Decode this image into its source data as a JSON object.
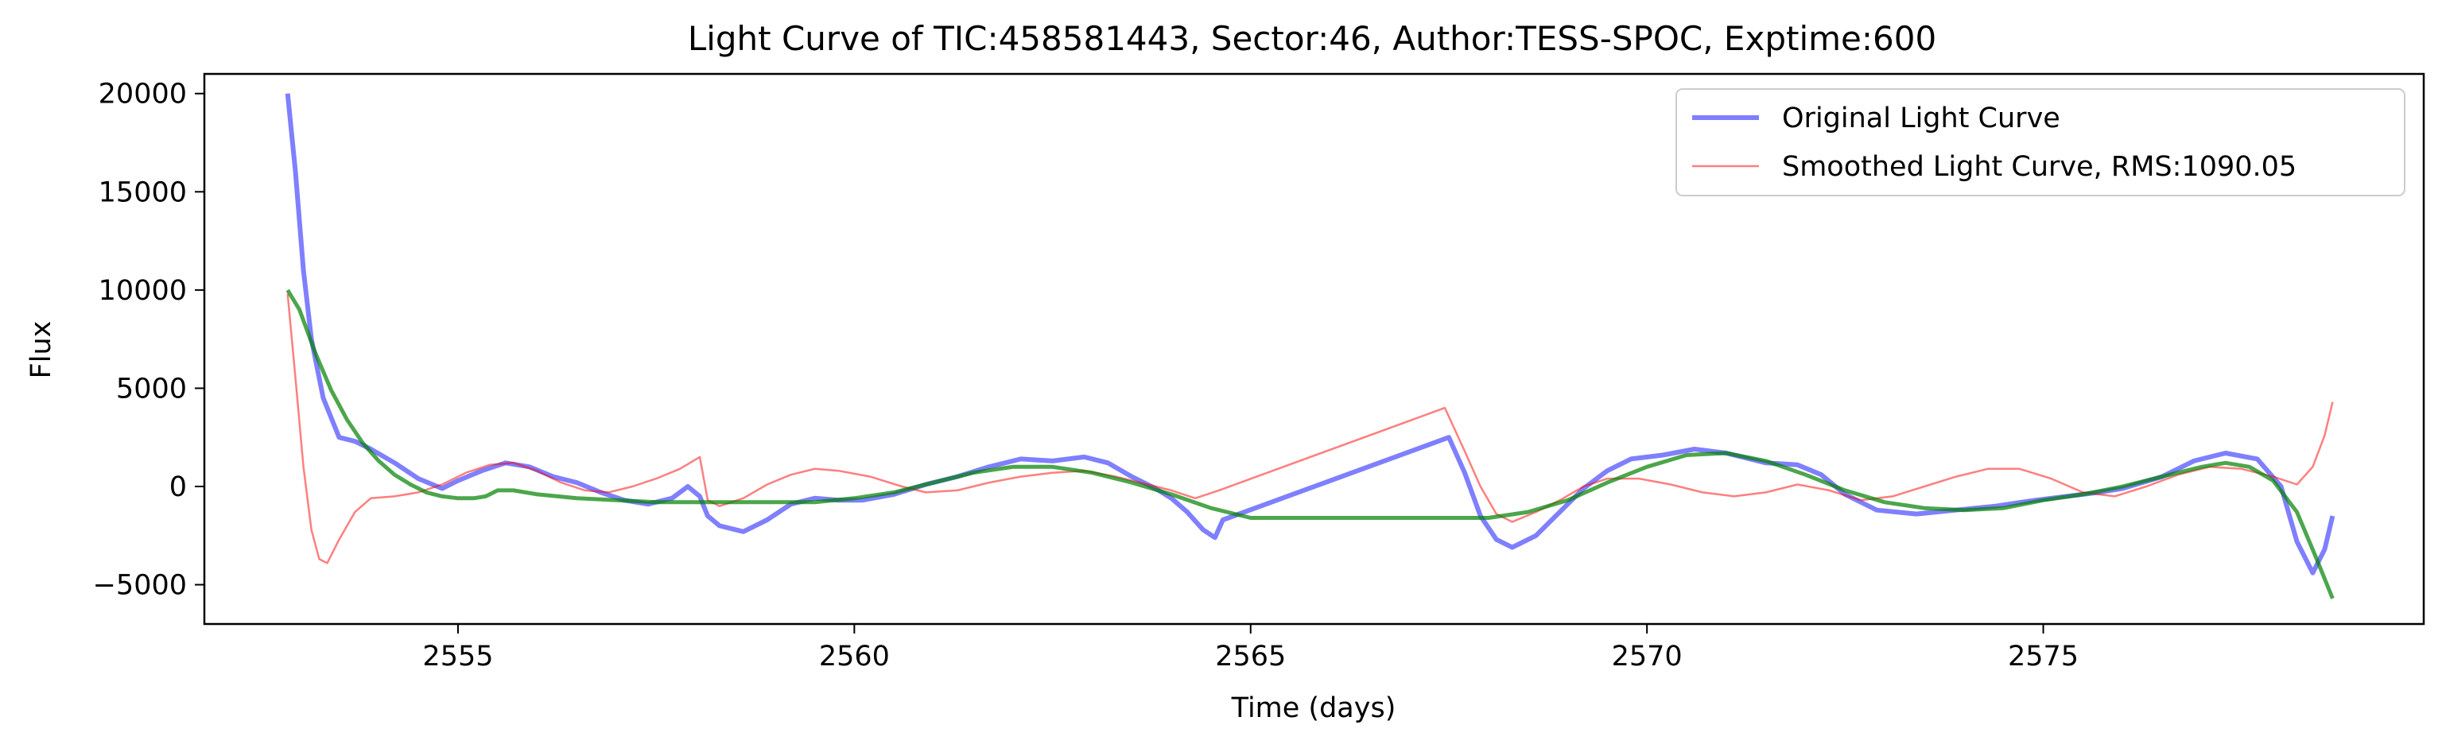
{
  "chart_data": {
    "type": "line",
    "title": "Light Curve of TIC:458581443, Sector:46, Author:TESS-SPOC, Exptime:600",
    "xlabel": "Time (days)",
    "ylabel": "Flux",
    "xlim": [
      2551.8,
      2579.8
    ],
    "ylim": [
      -7000,
      21000
    ],
    "xticks": [
      2555,
      2560,
      2565,
      2570,
      2575
    ],
    "yticks": [
      -5000,
      0,
      5000,
      10000,
      15000,
      20000
    ],
    "xtick_labels": [
      "2555",
      "2560",
      "2565",
      "2570",
      "2575"
    ],
    "ytick_labels": [
      "−5000",
      "0",
      "5000",
      "10000",
      "15000",
      "20000"
    ],
    "grid": false,
    "legend_position": "upper right",
    "series": [
      {
        "name": "Original Light Curve",
        "color": "#0000ff",
        "opacity": 0.5,
        "style": "thick",
        "points": [
          [
            2552.85,
            20000
          ],
          [
            2552.95,
            16000
          ],
          [
            2553.05,
            11000
          ],
          [
            2553.15,
            7500
          ],
          [
            2553.3,
            4500
          ],
          [
            2553.5,
            2500
          ],
          [
            2553.7,
            2300
          ],
          [
            2553.9,
            1900
          ],
          [
            2554.2,
            1200
          ],
          [
            2554.5,
            400
          ],
          [
            2554.8,
            -100
          ],
          [
            2555.0,
            300
          ],
          [
            2555.3,
            800
          ],
          [
            2555.6,
            1200
          ],
          [
            2555.9,
            1000
          ],
          [
            2556.2,
            500
          ],
          [
            2556.5,
            200
          ],
          [
            2556.8,
            -300
          ],
          [
            2557.1,
            -700
          ],
          [
            2557.4,
            -900
          ],
          [
            2557.7,
            -600
          ],
          [
            2557.9,
            0
          ],
          [
            2558.05,
            -500
          ],
          [
            2558.15,
            -1500
          ],
          [
            2558.3,
            -2000
          ],
          [
            2558.6,
            -2300
          ],
          [
            2558.9,
            -1700
          ],
          [
            2559.2,
            -900
          ],
          [
            2559.5,
            -600
          ],
          [
            2559.8,
            -700
          ],
          [
            2560.1,
            -700
          ],
          [
            2560.5,
            -400
          ],
          [
            2560.9,
            100
          ],
          [
            2561.3,
            500
          ],
          [
            2561.7,
            1000
          ],
          [
            2562.1,
            1400
          ],
          [
            2562.5,
            1300
          ],
          [
            2562.9,
            1500
          ],
          [
            2563.2,
            1200
          ],
          [
            2563.5,
            500
          ],
          [
            2563.8,
            -100
          ],
          [
            2564.0,
            -600
          ],
          [
            2564.2,
            -1300
          ],
          [
            2564.4,
            -2200
          ],
          [
            2564.55,
            -2600
          ],
          [
            2564.65,
            -1700
          ],
          [
            2567.5,
            2500
          ],
          [
            2567.7,
            700
          ],
          [
            2567.9,
            -1500
          ],
          [
            2568.1,
            -2700
          ],
          [
            2568.3,
            -3100
          ],
          [
            2568.6,
            -2500
          ],
          [
            2568.9,
            -1300
          ],
          [
            2569.2,
            -100
          ],
          [
            2569.5,
            800
          ],
          [
            2569.8,
            1400
          ],
          [
            2570.2,
            1600
          ],
          [
            2570.6,
            1900
          ],
          [
            2571.0,
            1700
          ],
          [
            2571.5,
            1200
          ],
          [
            2571.9,
            1100
          ],
          [
            2572.2,
            600
          ],
          [
            2572.5,
            -400
          ],
          [
            2572.9,
            -1200
          ],
          [
            2573.4,
            -1400
          ],
          [
            2573.9,
            -1200
          ],
          [
            2574.4,
            -1000
          ],
          [
            2574.9,
            -700
          ],
          [
            2575.3,
            -500
          ],
          [
            2575.7,
            -300
          ],
          [
            2576.0,
            -100
          ],
          [
            2576.5,
            500
          ],
          [
            2576.9,
            1300
          ],
          [
            2577.3,
            1700
          ],
          [
            2577.7,
            1400
          ],
          [
            2578.0,
            0
          ],
          [
            2578.2,
            -2800
          ],
          [
            2578.4,
            -4400
          ],
          [
            2578.55,
            -3200
          ],
          [
            2578.65,
            -1500
          ]
        ]
      },
      {
        "name": "Smoothed Light Curve, RMS:1090.05",
        "color": "#ff0000",
        "opacity": 0.5,
        "style": "thin",
        "points": [
          [
            2552.85,
            9800
          ],
          [
            2552.95,
            5500
          ],
          [
            2553.05,
            1000
          ],
          [
            2553.15,
            -2200
          ],
          [
            2553.25,
            -3700
          ],
          [
            2553.35,
            -3900
          ],
          [
            2553.5,
            -2700
          ],
          [
            2553.7,
            -1300
          ],
          [
            2553.9,
            -600
          ],
          [
            2554.2,
            -500
          ],
          [
            2554.5,
            -300
          ],
          [
            2554.8,
            100
          ],
          [
            2555.1,
            700
          ],
          [
            2555.4,
            1100
          ],
          [
            2555.7,
            1200
          ],
          [
            2556.0,
            800
          ],
          [
            2556.3,
            200
          ],
          [
            2556.6,
            -200
          ],
          [
            2556.9,
            -300
          ],
          [
            2557.2,
            0
          ],
          [
            2557.5,
            400
          ],
          [
            2557.8,
            900
          ],
          [
            2558.05,
            1500
          ],
          [
            2558.15,
            -700
          ],
          [
            2558.3,
            -1000
          ],
          [
            2558.6,
            -600
          ],
          [
            2558.9,
            100
          ],
          [
            2559.2,
            600
          ],
          [
            2559.5,
            900
          ],
          [
            2559.8,
            800
          ],
          [
            2560.2,
            500
          ],
          [
            2560.6,
            0
          ],
          [
            2560.9,
            -300
          ],
          [
            2561.3,
            -200
          ],
          [
            2561.7,
            200
          ],
          [
            2562.1,
            500
          ],
          [
            2562.5,
            700
          ],
          [
            2562.9,
            800
          ],
          [
            2563.3,
            500
          ],
          [
            2563.7,
            100
          ],
          [
            2564.0,
            -200
          ],
          [
            2564.3,
            -600
          ],
          [
            2564.6,
            -200
          ],
          [
            2567.45,
            4000
          ],
          [
            2567.7,
            1800
          ],
          [
            2567.9,
            0
          ],
          [
            2568.1,
            -1400
          ],
          [
            2568.3,
            -1800
          ],
          [
            2568.6,
            -1300
          ],
          [
            2568.9,
            -700
          ],
          [
            2569.2,
            0
          ],
          [
            2569.5,
            400
          ],
          [
            2569.9,
            400
          ],
          [
            2570.3,
            100
          ],
          [
            2570.7,
            -300
          ],
          [
            2571.1,
            -500
          ],
          [
            2571.5,
            -300
          ],
          [
            2571.9,
            100
          ],
          [
            2572.3,
            -200
          ],
          [
            2572.7,
            -700
          ],
          [
            2573.1,
            -500
          ],
          [
            2573.5,
            0
          ],
          [
            2573.9,
            500
          ],
          [
            2574.3,
            900
          ],
          [
            2574.7,
            900
          ],
          [
            2575.1,
            400
          ],
          [
            2575.5,
            -300
          ],
          [
            2575.9,
            -500
          ],
          [
            2576.3,
            0
          ],
          [
            2576.7,
            600
          ],
          [
            2577.1,
            1000
          ],
          [
            2577.5,
            900
          ],
          [
            2577.9,
            500
          ],
          [
            2578.2,
            100
          ],
          [
            2578.4,
            1000
          ],
          [
            2578.55,
            2600
          ],
          [
            2578.65,
            4300
          ]
        ]
      },
      {
        "color": "#008000",
        "opacity": 0.7,
        "style": "medium",
        "points": [
          [
            2552.85,
            10000
          ],
          [
            2553.0,
            9000
          ],
          [
            2553.2,
            6800
          ],
          [
            2553.4,
            4900
          ],
          [
            2553.6,
            3400
          ],
          [
            2553.8,
            2200
          ],
          [
            2554.0,
            1300
          ],
          [
            2554.2,
            600
          ],
          [
            2554.4,
            100
          ],
          [
            2554.6,
            -300
          ],
          [
            2554.8,
            -500
          ],
          [
            2555.0,
            -600
          ],
          [
            2555.2,
            -600
          ],
          [
            2555.35,
            -500
          ],
          [
            2555.5,
            -200
          ],
          [
            2555.7,
            -200
          ],
          [
            2556.0,
            -400
          ],
          [
            2556.5,
            -600
          ],
          [
            2557.0,
            -700
          ],
          [
            2557.5,
            -800
          ],
          [
            2558.0,
            -800
          ],
          [
            2558.5,
            -800
          ],
          [
            2559.0,
            -800
          ],
          [
            2559.5,
            -800
          ],
          [
            2560.0,
            -600
          ],
          [
            2560.5,
            -300
          ],
          [
            2561.0,
            200
          ],
          [
            2561.5,
            700
          ],
          [
            2562.0,
            1000
          ],
          [
            2562.5,
            1000
          ],
          [
            2563.0,
            700
          ],
          [
            2563.5,
            200
          ],
          [
            2564.0,
            -400
          ],
          [
            2564.5,
            -1100
          ],
          [
            2565.0,
            -1600
          ],
          [
            2566.0,
            -1600
          ],
          [
            2567.0,
            -1600
          ],
          [
            2567.5,
            -1600
          ],
          [
            2568.0,
            -1600
          ],
          [
            2568.5,
            -1300
          ],
          [
            2569.0,
            -700
          ],
          [
            2569.5,
            200
          ],
          [
            2570.0,
            1000
          ],
          [
            2570.5,
            1600
          ],
          [
            2571.0,
            1700
          ],
          [
            2571.5,
            1300
          ],
          [
            2572.0,
            600
          ],
          [
            2572.5,
            -200
          ],
          [
            2573.0,
            -800
          ],
          [
            2573.5,
            -1100
          ],
          [
            2574.0,
            -1200
          ],
          [
            2574.5,
            -1100
          ],
          [
            2575.0,
            -700
          ],
          [
            2575.5,
            -400
          ],
          [
            2576.0,
            0
          ],
          [
            2576.5,
            500
          ],
          [
            2577.0,
            1000
          ],
          [
            2577.3,
            1200
          ],
          [
            2577.6,
            1000
          ],
          [
            2577.9,
            300
          ],
          [
            2578.2,
            -1300
          ],
          [
            2578.45,
            -3700
          ],
          [
            2578.65,
            -5700
          ]
        ]
      }
    ]
  }
}
